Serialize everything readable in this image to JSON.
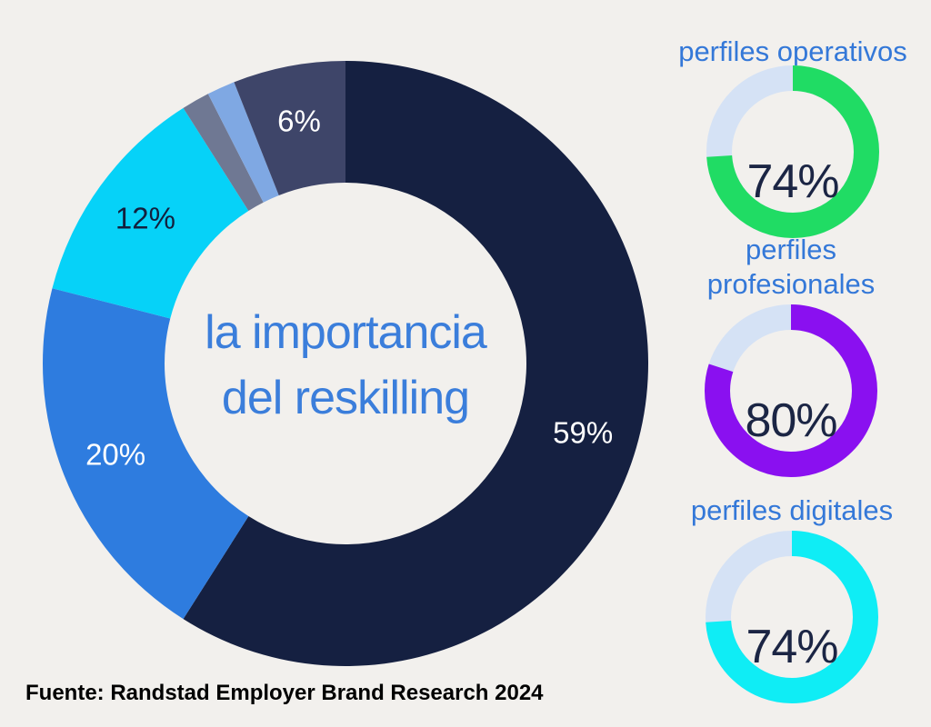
{
  "page": {
    "background": "#f2f0ed",
    "source_text": "Fuente: Randstad Employer Brand Research 2024"
  },
  "colors": {
    "title_blue": "#3b7edb",
    "mini_label_blue": "#3478d8",
    "percent_text_navy": "#1b2544",
    "track_periwinkle": "#d5e2f5",
    "source_black": "#000000"
  },
  "donut_center_title": {
    "line1": "la importancia",
    "line2": "del reskilling"
  },
  "chart_data": [
    {
      "id": "main-donut",
      "type": "pie",
      "variant": "donut",
      "title": "la importancia del reskilling",
      "direction": "clockwise",
      "start_angle_deg": 0,
      "center_label": "la importancia del reskilling",
      "categories": [
        "59%",
        "20%",
        "12%",
        "",
        "",
        "6%"
      ],
      "values": [
        59,
        20,
        12,
        1.5,
        1.5,
        6
      ],
      "slices": [
        {
          "label": "59%",
          "value": 59,
          "color": "#152041",
          "label_color": "#ffffff"
        },
        {
          "label": "20%",
          "value": 20,
          "color": "#2e7cdf",
          "label_color": "#ffffff"
        },
        {
          "label": "12%",
          "value": 12,
          "color": "#06d2f8",
          "label_color": "#13203e"
        },
        {
          "label": "",
          "value": 1.5,
          "color": "#6f7893",
          "label_color": ""
        },
        {
          "label": "",
          "value": 1.5,
          "color": "#7fa8e3",
          "label_color": ""
        },
        {
          "label": "6%",
          "value": 6,
          "color": "#3e4569",
          "label_color": "#ffffff"
        }
      ]
    },
    {
      "id": "perfiles-operativos",
      "type": "pie",
      "variant": "progress-donut",
      "label": "perfiles operativos",
      "value": 74,
      "display_value": "74%",
      "ring_color": "#20dc64",
      "track_color": "#d5e2f5"
    },
    {
      "id": "perfiles-profesionales",
      "type": "pie",
      "variant": "progress-donut",
      "label": "perfiles profesionales",
      "label_lines": [
        "perfiles",
        "profesionales"
      ],
      "value": 80,
      "display_value": "80%",
      "ring_color": "#8a10f0",
      "track_color": "#d5e2f5"
    },
    {
      "id": "perfiles-digitales",
      "type": "pie",
      "variant": "progress-donut",
      "label": "perfiles digitales",
      "value": 74,
      "display_value": "74%",
      "ring_color": "#0fedf5",
      "track_color": "#d5e2f5"
    }
  ]
}
